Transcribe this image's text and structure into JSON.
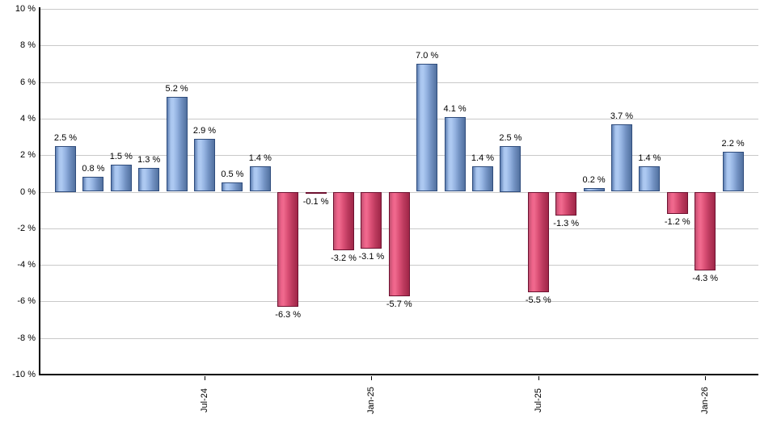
{
  "chart_data": {
    "type": "bar",
    "title": "",
    "unit": "%",
    "ylim": [
      -10,
      10
    ],
    "ytick_step": 2,
    "grid": true,
    "legend": "none",
    "values": [
      2.5,
      0.8,
      1.5,
      1.3,
      5.2,
      2.9,
      0.5,
      1.4,
      -6.3,
      -0.1,
      -3.2,
      -3.1,
      -5.7,
      7.0,
      4.1,
      1.4,
      2.5,
      -5.5,
      -1.3,
      0.2,
      3.7,
      1.4,
      -1.2,
      -4.3,
      2.2
    ],
    "bar_labels": [
      "2.5 %",
      "0.8 %",
      "1.5 %",
      "1.3 %",
      "5.2 %",
      "2.9 %",
      "0.5 %",
      "1.4 %",
      "-6.3 %",
      "-0.1 %",
      "-3.2 %",
      "-3.1 %",
      "-5.7 %",
      "7.0 %",
      "4.1 %",
      "1.4 %",
      "2.5 %",
      "-5.5 %",
      "-1.3 %",
      "0.2 %",
      "3.7 %",
      "1.4 %",
      "-1.2 %",
      "-4.3 %",
      "2.2 %"
    ],
    "y_axis_labels": [
      "10 %",
      "8 %",
      "6 %",
      "4 %",
      "2 %",
      "0 %",
      "-2 %",
      "-4 %",
      "-6 %",
      "-8 %",
      "-10 %"
    ],
    "x_ticks": [
      {
        "index": 5,
        "label": "Jul-24"
      },
      {
        "index": 11,
        "label": "Jan-25"
      },
      {
        "index": 17,
        "label": "Jul-25"
      },
      {
        "index": 23,
        "label": "Jan-26"
      }
    ],
    "colors": {
      "positive_light": "#aecaf2",
      "positive_dark": "#2f4c7c",
      "negative_light": "#f06a8e",
      "negative_dark": "#6e1130",
      "gridline": "#c9c9c9",
      "axis": "#000000",
      "label_text": "#000000",
      "background": "#ffffff"
    }
  }
}
